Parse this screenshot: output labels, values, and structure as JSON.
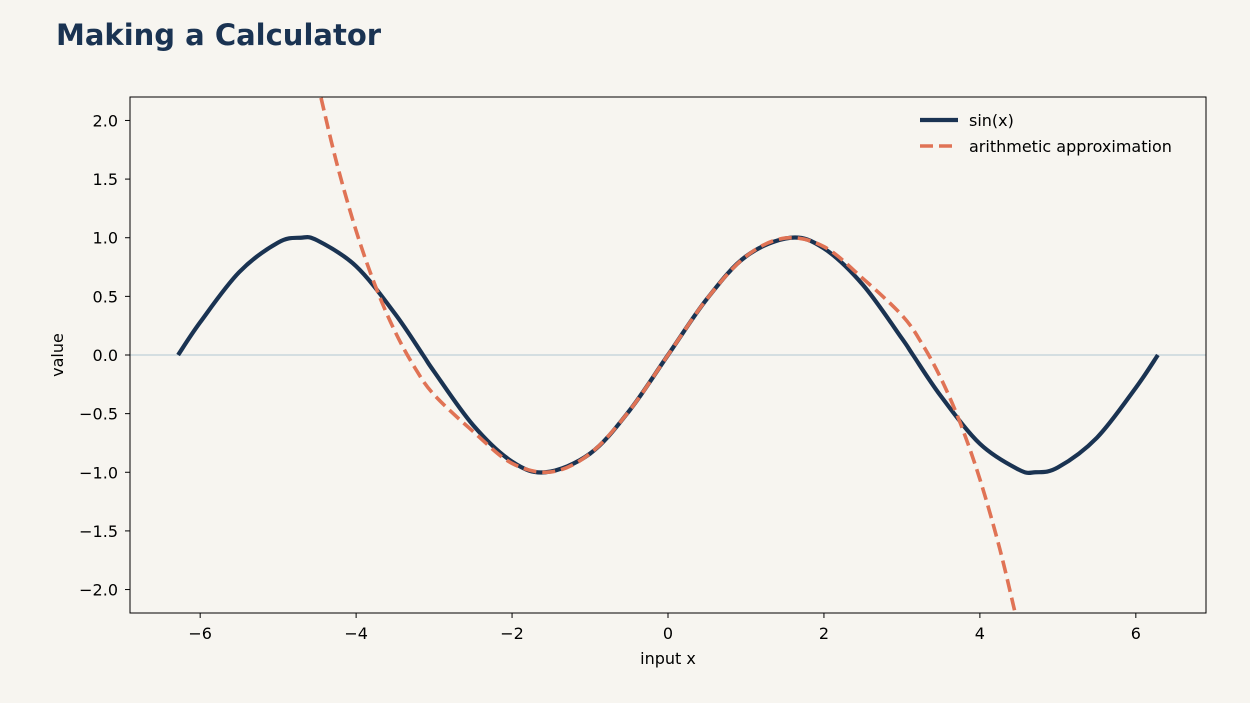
{
  "title": "Making a Calculator",
  "colors": {
    "background": "#f7f5f0",
    "title": "#1a3352",
    "zero_line": "#c9d6dc"
  },
  "chart_data": {
    "type": "line",
    "xlabel": "input x",
    "ylabel": "value",
    "xlim": [
      -6.9,
      6.9
    ],
    "ylim": [
      -2.2,
      2.2
    ],
    "xticks": [
      -6,
      -4,
      -2,
      0,
      2,
      4,
      6
    ],
    "xtick_labels": [
      "−6",
      "−4",
      "−2",
      "0",
      "2",
      "4",
      "6"
    ],
    "yticks": [
      -2.0,
      -1.5,
      -1.0,
      -0.5,
      0.0,
      0.5,
      1.0,
      1.5,
      2.0
    ],
    "ytick_labels": [
      "−2.0",
      "−1.5",
      "−1.0",
      "−0.5",
      "0.0",
      "0.5",
      "1.0",
      "1.5",
      "2.0"
    ],
    "grid": false,
    "zero_line": true,
    "legend_position": "top-right",
    "series": [
      {
        "name": "sin(x)",
        "style": "solid",
        "color": "#1a3352",
        "x": [
          -6.283,
          -6.0,
          -5.5,
          -5.0,
          -4.712,
          -4.5,
          -4.0,
          -3.5,
          -3.142,
          -3.0,
          -2.5,
          -2.0,
          -1.571,
          -1.0,
          -0.5,
          0.0,
          0.5,
          1.0,
          1.571,
          2.0,
          2.5,
          3.0,
          3.142,
          3.5,
          4.0,
          4.5,
          4.712,
          5.0,
          5.5,
          6.0,
          6.283
        ],
        "y": [
          0.0,
          0.279,
          0.706,
          0.959,
          1.0,
          0.978,
          0.757,
          0.351,
          0.0,
          -0.141,
          -0.598,
          -0.909,
          -1.0,
          -0.841,
          -0.479,
          0.0,
          0.479,
          0.841,
          1.0,
          0.909,
          0.598,
          0.141,
          0.0,
          -0.351,
          -0.757,
          -0.978,
          -1.0,
          -0.959,
          -0.706,
          -0.279,
          0.0
        ]
      },
      {
        "name": "arithmetic approximation",
        "style": "dashed",
        "color": "#e07355",
        "x": [
          -4.45,
          -4.25,
          -4.0,
          -3.75,
          -3.5,
          -3.25,
          -3.0,
          -2.5,
          -2.0,
          -1.5,
          -1.0,
          -0.5,
          0.0,
          0.5,
          1.0,
          1.5,
          2.0,
          2.5,
          3.0,
          3.25,
          3.5,
          3.75,
          4.0,
          4.25,
          4.45
        ],
        "y": [
          2.193,
          1.64,
          1.059,
          0.583,
          0.199,
          -0.105,
          -0.339,
          -0.652,
          -0.924,
          -0.997,
          -0.841,
          -0.479,
          0.0,
          0.479,
          0.841,
          0.997,
          0.924,
          0.652,
          0.339,
          0.105,
          -0.199,
          -0.583,
          -1.059,
          -1.64,
          -2.193
        ]
      }
    ]
  }
}
